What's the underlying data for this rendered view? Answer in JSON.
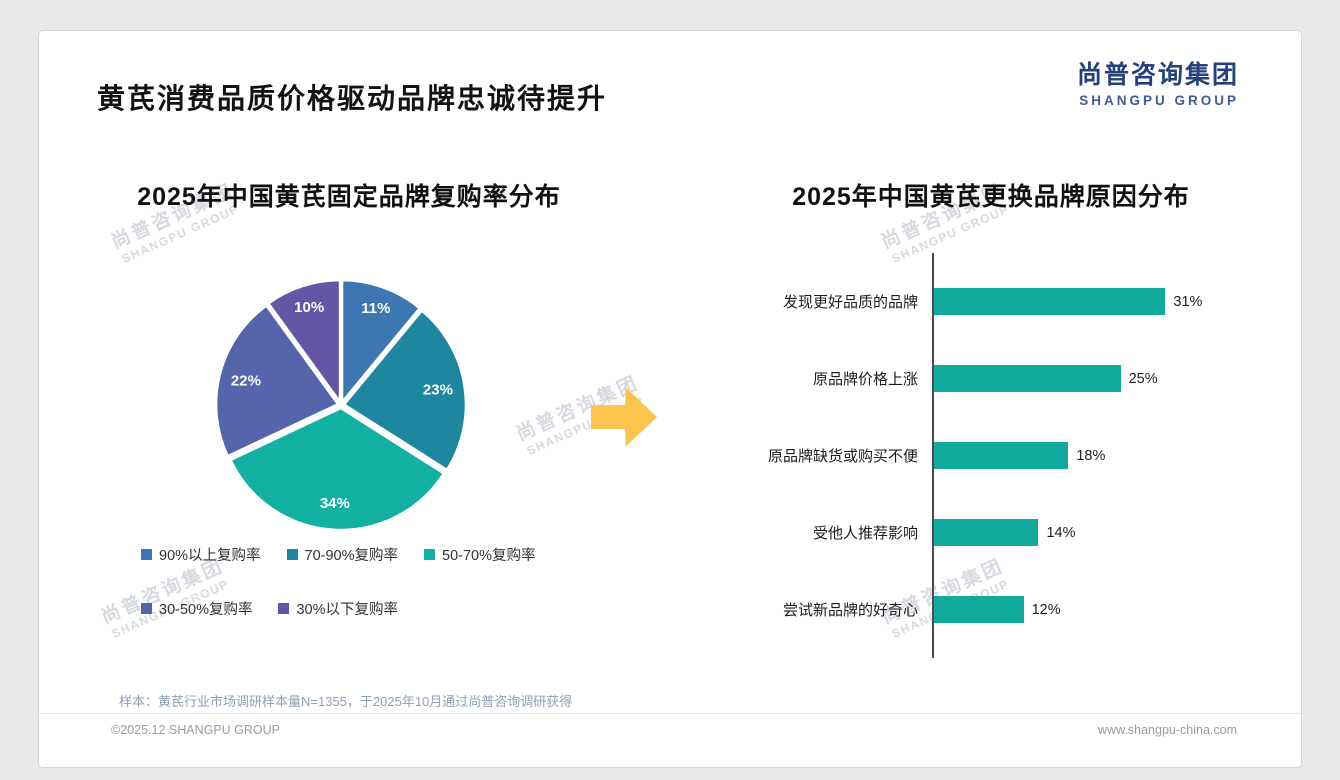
{
  "page": {
    "title": "黄芪消费品质价格驱动品牌忠诚待提升",
    "logo_cn": "尚普咨询集团",
    "logo_en": "SHANGPU GROUP",
    "watermark_cn": "尚普咨询集团",
    "watermark_en": "SHANGPU GROUP",
    "note": "样本：黄芪行业市场调研样本量N=1355，于2025年10月通过尚普咨询调研获得",
    "copyright": "©2025.12 SHANGPU GROUP",
    "website": "www.shangpu-china.com"
  },
  "colors": {
    "arrow": "#fcc34d",
    "bar": "#12a99e",
    "logo_navy": "#24417c"
  },
  "chart_data": [
    {
      "type": "pie",
      "title": "2025年中国黄芪固定品牌复购率分布",
      "labels": [
        "90%以上复购率",
        "70-90%复购率",
        "50-70%复购率",
        "30-50%复购率",
        "30%以下复购率"
      ],
      "values": [
        11,
        23,
        34,
        22,
        10
      ],
      "value_suffix": "%",
      "colors": [
        "#3c77b3",
        "#1f86a0",
        "#12b0a2",
        "#5565ab",
        "#6456a5"
      ],
      "start_angle_deg": -90,
      "direction": "clockwise",
      "legend_position": "bottom"
    },
    {
      "type": "bar",
      "orientation": "horizontal",
      "title": "2025年中国黄芪更换品牌原因分布",
      "categories": [
        "发现更好品质的品牌",
        "原品牌价格上涨",
        "原品牌缺货或购买不便",
        "受他人推荐影响",
        "尝试新品牌的好奇心"
      ],
      "values": [
        31,
        25,
        18,
        14,
        12
      ],
      "value_suffix": "%",
      "bar_color": "#12a99e",
      "xlim": [
        0,
        35
      ],
      "grid": false,
      "legend_position": "none"
    }
  ]
}
